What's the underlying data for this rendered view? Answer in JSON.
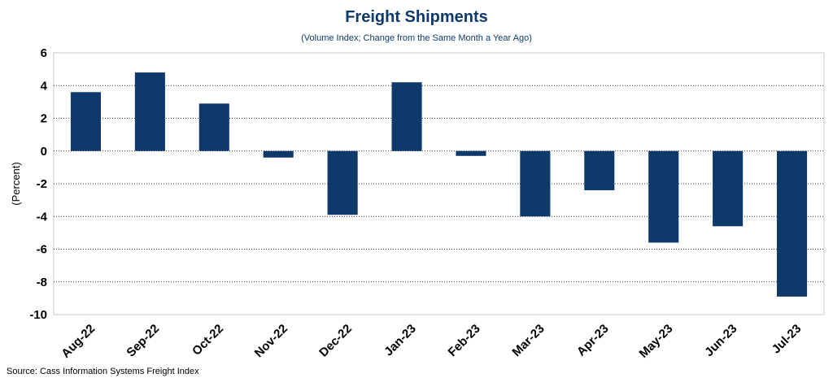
{
  "chart_data": {
    "type": "bar",
    "title": "Freight Shipments",
    "subtitle": "(Volume Index; Change from the Same Month a Year Ago)",
    "ylabel": "(Percent)",
    "xlabel": "",
    "categories": [
      "Aug-22",
      "Sep-22",
      "Oct-22",
      "Nov-22",
      "Dec-22",
      "Jan-23",
      "Feb-23",
      "Mar-23",
      "Apr-23",
      "May-23",
      "Jun-23",
      "Jul-23"
    ],
    "values": [
      3.6,
      4.8,
      2.9,
      -0.4,
      -3.9,
      4.2,
      -0.3,
      -4.0,
      -2.4,
      -5.6,
      -4.6,
      -8.9
    ],
    "ylim": [
      -10,
      6
    ],
    "yticks": [
      "6",
      "4",
      "2",
      "0",
      "-2",
      "-4",
      "-6",
      "-8",
      "-10"
    ],
    "grid": true,
    "bar_color": "#0d3a6b",
    "source": "Source: Cass Information Systems Freight Index"
  }
}
